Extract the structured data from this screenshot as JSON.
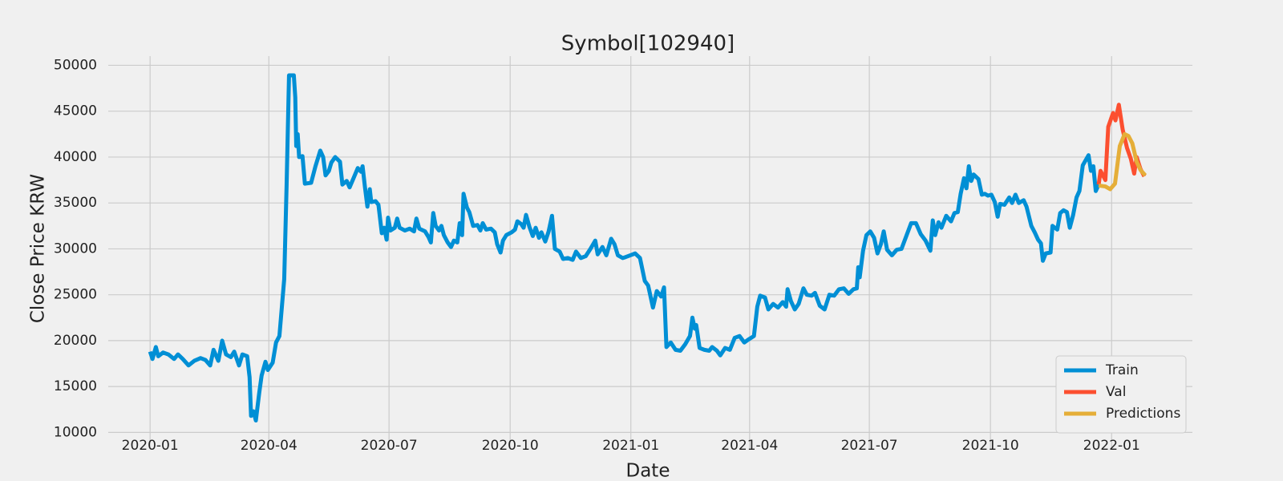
{
  "chart_data": {
    "type": "line",
    "title": "Symbol[102940]",
    "x_label": "Date",
    "y_label": "Close Price KRW",
    "xlim": [
      2019.913,
      2022.168
    ],
    "ylim": [
      8200,
      51000
    ],
    "xticks": [
      {
        "value": 2020.0,
        "label": "2020-01"
      },
      {
        "value": 2020.247,
        "label": "2020-04"
      },
      {
        "value": 2020.497,
        "label": "2020-07"
      },
      {
        "value": 2020.749,
        "label": "2020-10"
      },
      {
        "value": 2021.0,
        "label": "2021-01"
      },
      {
        "value": 2021.247,
        "label": "2021-04"
      },
      {
        "value": 2021.496,
        "label": "2021-07"
      },
      {
        "value": 2021.748,
        "label": "2021-10"
      },
      {
        "value": 2022.0,
        "label": "2022-01"
      }
    ],
    "yticks": [
      10000,
      15000,
      20000,
      25000,
      30000,
      35000,
      40000,
      45000,
      50000
    ],
    "grid": true,
    "legend": "lower right",
    "series": [
      {
        "name": "Train",
        "color": "#008fd5",
        "x": [
          2020.0,
          2020.005,
          2020.012,
          2020.017,
          2020.027,
          2020.038,
          2020.05,
          2020.058,
          2020.068,
          2020.08,
          2020.092,
          2020.105,
          2020.115,
          2020.125,
          2020.132,
          2020.142,
          2020.15,
          2020.158,
          2020.168,
          2020.175,
          2020.185,
          2020.192,
          2020.202,
          2020.207,
          2020.21,
          2020.215,
          2020.22,
          2020.227,
          2020.232,
          2020.24,
          2020.245,
          2020.255,
          2020.262,
          2020.269,
          2020.279,
          2020.284,
          2020.289,
          2020.299,
          2020.302,
          2020.304,
          2020.307,
          2020.31,
          2020.317,
          2020.322,
          2020.335,
          2020.344,
          2020.354,
          2020.36,
          2020.365,
          2020.372,
          2020.377,
          2020.385,
          2020.395,
          2020.4,
          2020.409,
          2020.415,
          2020.424,
          2020.432,
          2020.439,
          2020.442,
          2020.447,
          2020.452,
          2020.457,
          2020.46,
          2020.469,
          2020.475,
          2020.482,
          2020.487,
          2020.492,
          2020.495,
          2020.5,
          2020.509,
          2020.514,
          2020.519,
          2020.53,
          2020.54,
          2020.549,
          2020.554,
          2020.56,
          2020.572,
          2020.579,
          2020.584,
          2020.589,
          2020.594,
          2020.601,
          2020.606,
          2020.611,
          2020.619,
          2020.626,
          2020.632,
          2020.639,
          2020.644,
          2020.649,
          2020.652,
          2020.659,
          2020.664,
          2020.672,
          2020.681,
          2020.687,
          2020.692,
          2020.699,
          2020.709,
          2020.717,
          2020.722,
          2020.729,
          2020.734,
          2020.741,
          2020.752,
          2020.759,
          2020.764,
          2020.772,
          2020.777,
          2020.782,
          2020.789,
          2020.796,
          2020.802,
          2020.809,
          2020.814,
          2020.822,
          2020.829,
          2020.836,
          2020.842,
          2020.852,
          2020.859,
          2020.869,
          2020.879,
          2020.886,
          2020.896,
          2020.906,
          2020.916,
          2020.926,
          2020.931,
          2020.941,
          2020.949,
          2020.959,
          2020.966,
          2020.973,
          2020.983,
          2020.989,
          2020.999,
          2021.009,
          2021.019,
          2021.029,
          2021.036,
          2021.046,
          2021.054,
          2021.063,
          2021.069,
          2021.074,
          2021.083,
          2021.093,
          2021.103,
          2021.113,
          2021.123,
          2021.128,
          2021.133,
          2021.136,
          2021.143,
          2021.153,
          2021.163,
          2021.169,
          2021.179,
          2021.186,
          2021.196,
          2021.206,
          2021.216,
          2021.226,
          2021.236,
          2021.244,
          2021.256,
          2021.263,
          2021.269,
          2021.279,
          2021.286,
          2021.296,
          2021.306,
          2021.316,
          2021.323,
          2021.326,
          2021.333,
          2021.341,
          2021.349,
          2021.359,
          2021.366,
          2021.376,
          2021.383,
          2021.393,
          2021.403,
          2021.413,
          2021.423,
          2021.433,
          2021.443,
          2021.453,
          2021.463,
          2021.47,
          2021.473,
          2021.476,
          2021.483,
          2021.49,
          2021.498,
          2021.506,
          2021.513,
          2021.52,
          2021.526,
          2021.533,
          2021.543,
          2021.553,
          2021.563,
          2021.573,
          2021.583,
          2021.593,
          2021.603,
          2021.613,
          2021.623,
          2021.628,
          2021.633,
          2021.64,
          2021.646,
          2021.656,
          2021.666,
          2021.673,
          2021.68,
          2021.686,
          2021.693,
          2021.698,
          2021.703,
          2021.708,
          2021.713,
          2021.723,
          2021.73,
          2021.736,
          2021.743,
          2021.75,
          2021.757,
          2021.763,
          2021.768,
          2021.777,
          2021.787,
          2021.793,
          2021.8,
          2021.807,
          2021.817,
          2021.823,
          2021.833,
          2021.84,
          2021.847,
          2021.853,
          2021.857,
          2021.863,
          2021.873,
          2021.877,
          2021.887,
          2021.893,
          2021.9,
          2021.907,
          2021.913,
          2021.92,
          2021.927,
          2021.933,
          2021.94,
          2021.952,
          2021.957,
          2021.962,
          2021.967,
          2021.973
        ],
        "values": [
          18800,
          18000,
          19300,
          18300,
          18700,
          18500,
          18000,
          18500,
          18000,
          17300,
          17800,
          18100,
          17900,
          17300,
          19000,
          17800,
          20000,
          18500,
          18200,
          18800,
          17300,
          18500,
          18300,
          16000,
          11800,
          12300,
          11300,
          14300,
          16200,
          17700,
          16800,
          17600,
          19800,
          20500,
          26700,
          37000,
          48900,
          48900,
          46500,
          41200,
          42500,
          40000,
          40100,
          37100,
          37200,
          39000,
          40700,
          40000,
          38000,
          38500,
          39400,
          40000,
          39500,
          37000,
          37400,
          36700,
          37800,
          38800,
          38400,
          39000,
          36700,
          34600,
          36500,
          35100,
          35200,
          34800,
          31700,
          32300,
          31000,
          33400,
          32000,
          32300,
          33300,
          32300,
          32000,
          32200,
          31900,
          33300,
          32200,
          31900,
          31300,
          30700,
          33900,
          32500,
          32000,
          32500,
          31500,
          30700,
          30200,
          30900,
          30700,
          32800,
          31500,
          36000,
          34500,
          34000,
          32500,
          32600,
          32000,
          32800,
          32100,
          32200,
          31800,
          30500,
          29600,
          30900,
          31500,
          31800,
          32100,
          33000,
          32700,
          32300,
          33700,
          32400,
          31400,
          32300,
          31200,
          31800,
          30800,
          31900,
          33600,
          30000,
          29700,
          28900,
          29000,
          28800,
          29700,
          29000,
          29200,
          30000,
          30900,
          29400,
          30200,
          29300,
          31100,
          30500,
          29300,
          29000,
          29100,
          29300,
          29500,
          29000,
          26500,
          26000,
          23600,
          25400,
          24800,
          25800,
          19300,
          19800,
          19000,
          18900,
          19600,
          20500,
          22500,
          21300,
          21700,
          19200,
          19000,
          18900,
          19300,
          18900,
          18400,
          19200,
          19000,
          20300,
          20500,
          19800,
          20100,
          20500,
          23700,
          24900,
          24700,
          23400,
          24000,
          23600,
          24200,
          23700,
          25600,
          24300,
          23400,
          24000,
          25700,
          25000,
          24900,
          25200,
          23800,
          23400,
          25000,
          24900,
          25600,
          25700,
          25100,
          25600,
          25700,
          28000,
          26900,
          29800,
          31500,
          31900,
          31200,
          29500,
          30500,
          31900,
          29900,
          29300,
          29900,
          30000,
          31400,
          32800,
          32800,
          31600,
          30900,
          29800,
          33100,
          31500,
          32900,
          32300,
          33600,
          33000,
          33900,
          34000,
          36000,
          37700,
          36600,
          39000,
          37400,
          38100,
          37600,
          35900,
          36000,
          35800,
          35900,
          35100,
          33500,
          34900,
          34800,
          35600,
          35000,
          35900,
          35000,
          35300,
          34600,
          32500,
          31800,
          31000,
          30600,
          28700,
          29500,
          29600,
          32500,
          32100,
          33900,
          34200,
          34000,
          32300,
          33700,
          35600,
          36300,
          39100,
          40200,
          38500,
          39000,
          36300,
          37000
        ]
      },
      {
        "name": "Val",
        "color": "#fc4f30",
        "x": [
          2021.973,
          2021.977,
          2021.987,
          2021.993,
          2022.003,
          2022.008,
          2022.015,
          2022.023,
          2022.032,
          2022.04,
          2022.047,
          2022.052,
          2022.06,
          2022.068
        ],
        "values": [
          37000,
          38500,
          37500,
          43300,
          44800,
          44000,
          45700,
          43000,
          41000,
          39800,
          38200,
          40000,
          38700,
          37900
        ]
      },
      {
        "name": "Predictions",
        "color": "#e5ae38",
        "x": [
          2021.973,
          2021.987,
          2021.997,
          2022.007,
          2022.017,
          2022.027,
          2022.035,
          2022.043,
          2022.052,
          2022.06,
          2022.07
        ],
        "values": [
          36900,
          36800,
          36500,
          37100,
          41200,
          42500,
          42300,
          41500,
          39500,
          38600,
          38000
        ]
      }
    ]
  }
}
